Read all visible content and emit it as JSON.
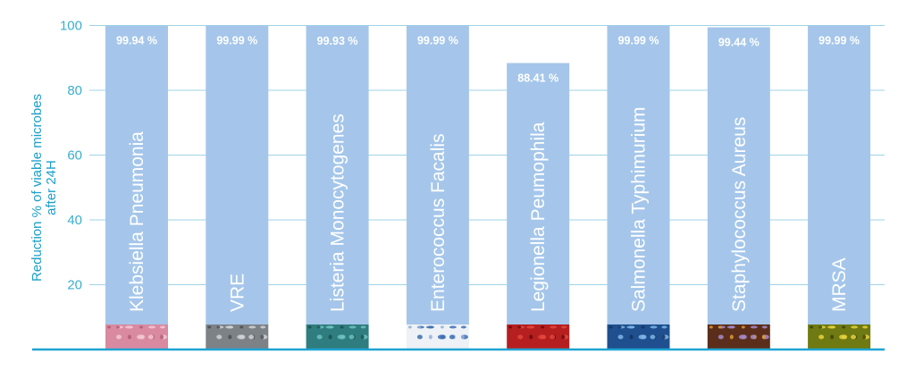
{
  "chart_data": {
    "type": "bar",
    "categories": [
      "Klebsiella Pneumonia",
      "VRE",
      "Listeria Monocytogenes",
      "Enterococcus Facalis",
      "Legionella Peumophila",
      "Salmonella Typhimurium",
      "Staphylococcus Aureus",
      "MRSA"
    ],
    "values": [
      99.94,
      99.99,
      99.93,
      99.99,
      88.41,
      99.99,
      99.44,
      99.99
    ],
    "value_labels": [
      "99.94 %",
      "99.99 %",
      "99.93 %",
      "99.99 %",
      "88.41 %",
      "99.99 %",
      "99.44 %",
      "99.99 %"
    ],
    "title": "",
    "xlabel": "",
    "ylabel_line1": "Reduction % of viable microbes",
    "ylabel_line2": "after 24H",
    "ylim": [
      0,
      100
    ],
    "yticks": [
      "20",
      "40",
      "60",
      "80",
      "100"
    ],
    "grid": true,
    "legend": "none",
    "colors": {
      "bar": "#a5c6ea",
      "grid": "#9fd3e6",
      "axis": "#1fa3d2",
      "tick": "#3aaed0",
      "ylabel": "#1a9fcb",
      "text_on_bar": "#ffffff"
    },
    "microbe_images": [
      "pink-tissue-micrograph",
      "gray-microbe-micrograph",
      "teal-rod-bacteria-micrograph",
      "white-blue-bacteria-micrograph",
      "red-rod-bacteria-micrograph",
      "blue-bacteria-micrograph",
      "purple-cocci-micrograph",
      "yellow-cocci-micrograph"
    ]
  }
}
